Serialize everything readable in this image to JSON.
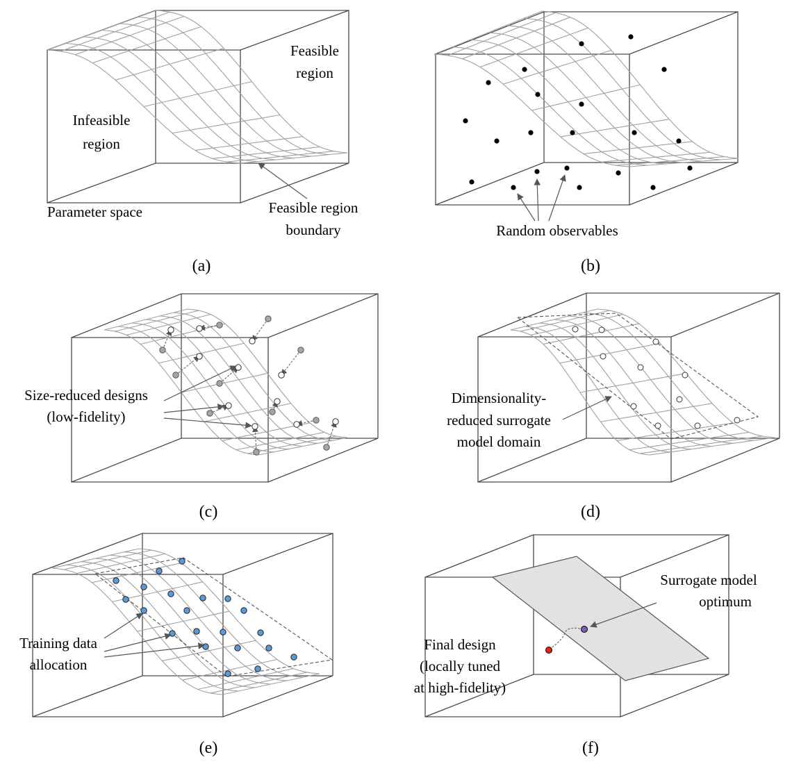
{
  "panels": [
    {
      "caption": "(a)",
      "labels": [
        "Infeasible",
        "region",
        "Feasible",
        "region",
        "Parameter space",
        "Feasible region",
        "boundary"
      ]
    },
    {
      "caption": "(b)",
      "labels": [
        "Random observables"
      ]
    },
    {
      "caption": "(c)",
      "labels": [
        "Size-reduced designs",
        "(low-fidelity)"
      ]
    },
    {
      "caption": "(d)",
      "labels": [
        "Dimensionality-",
        "reduced surrogate",
        "model domain"
      ]
    },
    {
      "caption": "(e)",
      "labels": [
        "Training data",
        "allocation"
      ]
    },
    {
      "caption": "(f)",
      "labels": [
        "Surrogate model",
        "optimum",
        "Final design",
        "(locally tuned",
        "at high-fidelity)"
      ]
    }
  ],
  "colors": {
    "edge": "#4a4a4a",
    "mesh": "#a0a0a0",
    "dot_black": "#000000",
    "dot_gray": "#a6a6a6",
    "dot_open": "#ffffff",
    "dot_blue": "#5b9bd5",
    "plane_fill": "#e2e2e2",
    "optimum": "#7b5fb3",
    "final_design": "#e0241b"
  }
}
